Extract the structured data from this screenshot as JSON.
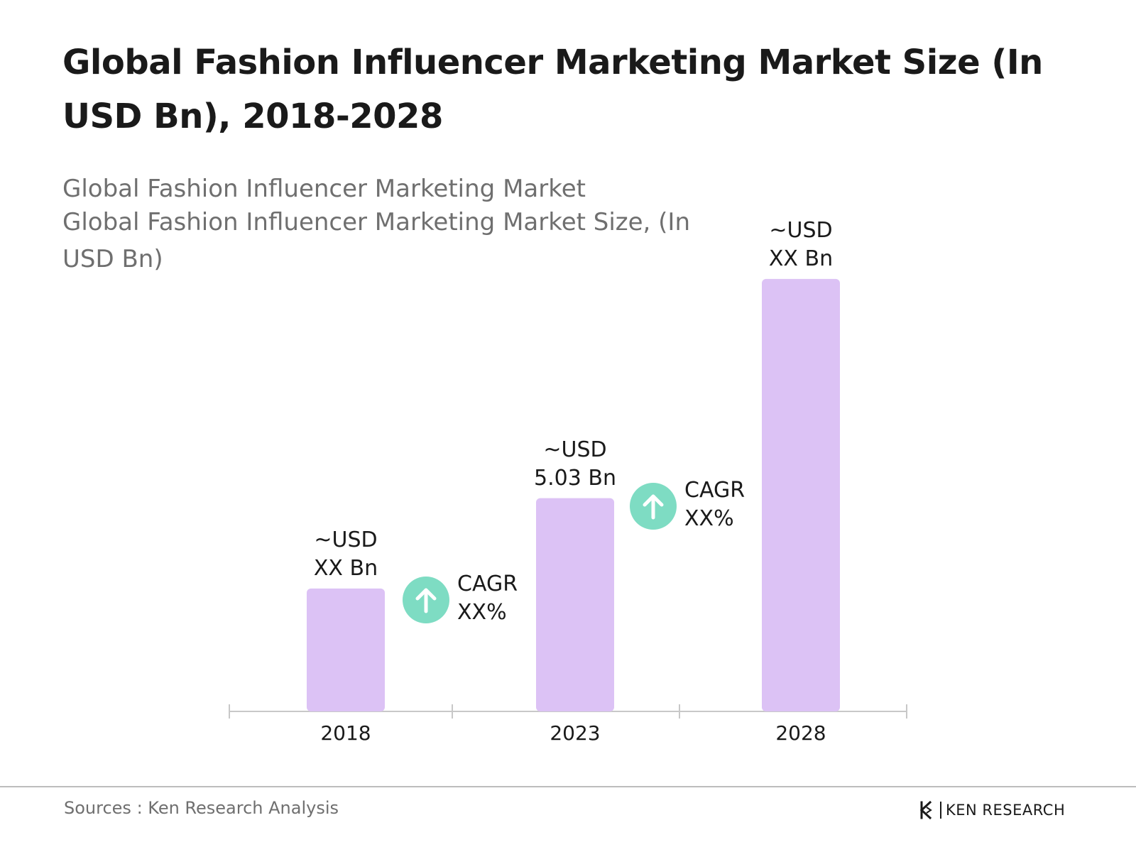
{
  "header": {
    "title": "Global Fashion Influencer Marketing Market Size (In USD Bn), 2018-2028",
    "subtitle_line1": "Global Fashion Influencer Marketing Market",
    "subtitle_line2": "Global Fashion Influencer Marketing Market Size, (In USD Bn)"
  },
  "colors": {
    "bar": "#dcc2f5",
    "axis": "#c8c8c8",
    "cagr_icon": "#7edcc3",
    "text": "#1a1a1a",
    "muted_text": "#6f6f6f"
  },
  "chart_data": {
    "type": "bar",
    "categories": [
      "2018",
      "2023",
      "2028"
    ],
    "values": [
      2.9,
      5.03,
      10.2
    ],
    "data_labels": [
      {
        "line1": "~USD",
        "line2": "XX Bn"
      },
      {
        "line1": "~USD",
        "line2": "5.03 Bn"
      },
      {
        "line1": "~USD",
        "line2": "XX Bn"
      }
    ],
    "annotations": [
      {
        "icon": "arrow-up-icon",
        "line1": "CAGR",
        "line2": "XX%"
      },
      {
        "icon": "arrow-up-icon",
        "line1": "CAGR",
        "line2": "XX%"
      }
    ],
    "title": "Global Fashion Influencer Marketing Market Size (In USD Bn), 2018-2028",
    "xlabel": "",
    "ylabel": "",
    "ylim": [
      0,
      10.5
    ],
    "grid": false,
    "legend": "none"
  },
  "footer": {
    "source": "Sources : Ken Research Analysis",
    "brand": "KEN RESEARCH",
    "brand_icon": "ken-research-logo-icon"
  }
}
